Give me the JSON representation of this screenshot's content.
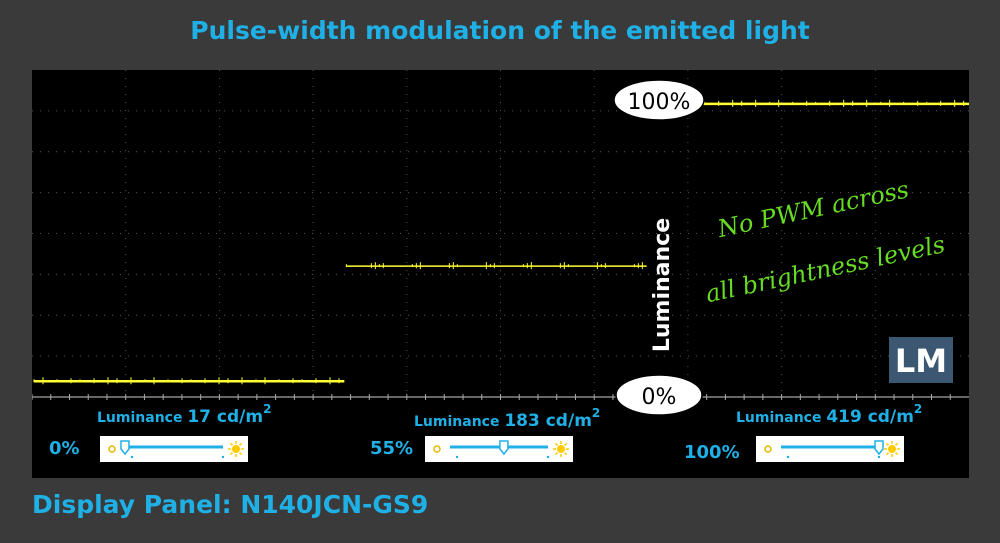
{
  "title": "Pulse-width modulation of the emitted light",
  "panel": "Display Panel: N140JCN-GS9",
  "logo": "LM",
  "colors": {
    "accent": "#1fb0e6",
    "trace": "#ffff33",
    "note": "#66dd22",
    "background": "#3a3a3a",
    "scope": "#000000"
  },
  "chart_data": {
    "type": "line",
    "title": "Pulse-width modulation of the emitted light",
    "ylabel": "Luminance",
    "y_axis_labels": {
      "top": "100%",
      "bottom": "0%"
    },
    "ylim": [
      0,
      100
    ],
    "grid": true,
    "note_lines": [
      "No PWM across",
      "all brightness levels"
    ],
    "series": [
      {
        "name": "0%",
        "luminance": "17 cd/m",
        "brightness_setting": 0,
        "level": 4
      },
      {
        "name": "55%",
        "luminance": "183 cd/m",
        "brightness_setting": 55,
        "level": 43
      },
      {
        "name": "100%",
        "luminance": "419 cd/m",
        "brightness_setting": 100,
        "level": 98
      }
    ],
    "luminance_word": "Luminance",
    "luminance_unit_exp": "2"
  }
}
